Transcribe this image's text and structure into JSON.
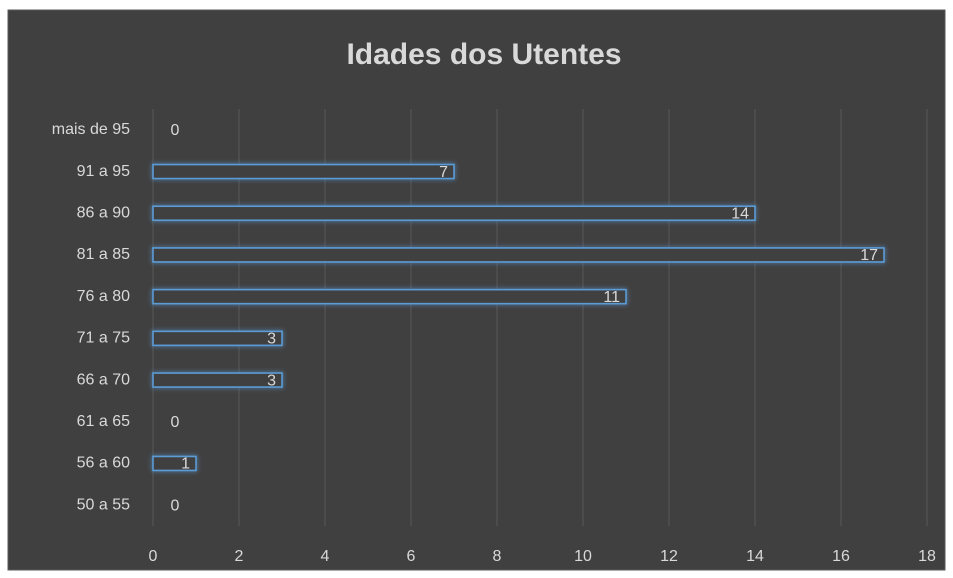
{
  "chart_data": {
    "type": "bar",
    "orientation": "horizontal",
    "title": "Idades dos Utentes",
    "categories": [
      "50 a 55",
      "56 a 60",
      "61 a 65",
      "66 a 70",
      "71 a 75",
      "76 a 80",
      "81 a 85",
      "86 a 90",
      "91 a 95",
      "mais de 95"
    ],
    "values": [
      0,
      1,
      0,
      3,
      3,
      11,
      17,
      14,
      7,
      0
    ],
    "color": "#5b9bd5",
    "xlim": [
      0,
      18
    ],
    "xticks": [
      0,
      2,
      4,
      6,
      8,
      10,
      12,
      14,
      16,
      18
    ],
    "grid": true
  }
}
